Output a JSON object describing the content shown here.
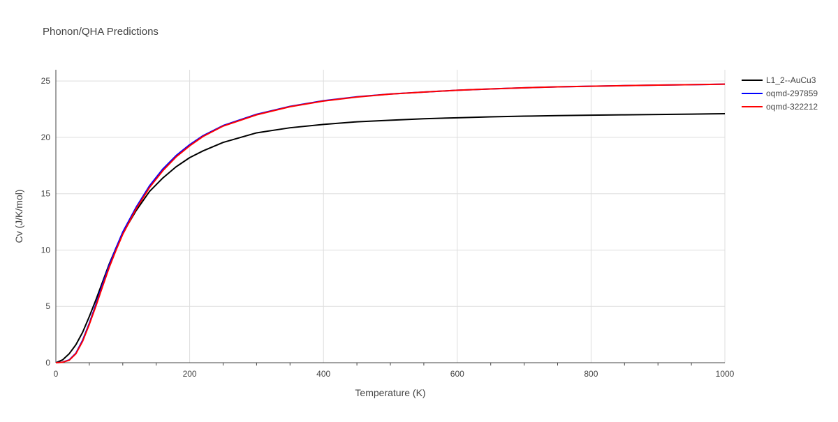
{
  "chart_data": {
    "type": "line",
    "title": "Phonon/QHA Predictions",
    "xlabel": "Temperature (K)",
    "ylabel": "Cv (J/K/mol)",
    "xlim": [
      0,
      1000
    ],
    "ylim": [
      0,
      26
    ],
    "xticks": [
      0,
      200,
      400,
      600,
      800,
      1000
    ],
    "yticks": [
      0,
      5,
      10,
      15,
      20,
      25
    ],
    "grid": true,
    "legend_position": "right",
    "series": [
      {
        "name": "L1_2--AuCu3",
        "color": "#000000",
        "x": [
          0,
          10,
          20,
          30,
          40,
          50,
          60,
          70,
          80,
          90,
          100,
          120,
          140,
          160,
          180,
          200,
          220,
          250,
          300,
          350,
          400,
          450,
          500,
          550,
          600,
          650,
          700,
          750,
          800,
          850,
          900,
          950,
          1000
        ],
        "y": [
          0,
          0.25,
          0.8,
          1.6,
          2.7,
          4.1,
          5.6,
          7.2,
          8.8,
          10.2,
          11.5,
          13.5,
          15.2,
          16.4,
          17.4,
          18.2,
          18.8,
          19.55,
          20.4,
          20.85,
          21.15,
          21.38,
          21.52,
          21.65,
          21.74,
          21.82,
          21.88,
          21.93,
          21.97,
          22.0,
          22.03,
          22.06,
          22.1
        ]
      },
      {
        "name": "oqmd-297859",
        "color": "#0000ff",
        "x": [
          0,
          10,
          20,
          30,
          40,
          50,
          60,
          70,
          80,
          90,
          100,
          120,
          140,
          160,
          180,
          200,
          220,
          250,
          300,
          350,
          400,
          450,
          500,
          550,
          600,
          650,
          700,
          750,
          800,
          850,
          900,
          950,
          1000
        ],
        "y": [
          0,
          0.05,
          0.25,
          0.85,
          2.0,
          3.5,
          5.2,
          7.0,
          8.7,
          10.2,
          11.6,
          13.8,
          15.7,
          17.2,
          18.4,
          19.35,
          20.15,
          21.05,
          22.05,
          22.75,
          23.25,
          23.6,
          23.85,
          24.02,
          24.18,
          24.3,
          24.4,
          24.48,
          24.54,
          24.59,
          24.64,
          24.68,
          24.72
        ]
      },
      {
        "name": "oqmd-322212",
        "color": "#ff0000",
        "x": [
          0,
          10,
          20,
          30,
          40,
          50,
          60,
          70,
          80,
          90,
          100,
          120,
          140,
          160,
          180,
          200,
          220,
          250,
          300,
          350,
          400,
          450,
          500,
          550,
          600,
          650,
          700,
          750,
          800,
          850,
          900,
          950,
          1000
        ],
        "y": [
          0,
          0.04,
          0.22,
          0.8,
          1.9,
          3.4,
          5.05,
          6.8,
          8.5,
          10.0,
          11.4,
          13.65,
          15.55,
          17.05,
          18.28,
          19.25,
          20.08,
          21.0,
          22.0,
          22.72,
          23.22,
          23.58,
          23.84,
          24.02,
          24.18,
          24.3,
          24.4,
          24.48,
          24.54,
          24.59,
          24.64,
          24.68,
          24.72
        ]
      }
    ]
  },
  "colors": {
    "axis_text": "#444444",
    "title_text": "#444444",
    "grid": "#dddddd"
  }
}
